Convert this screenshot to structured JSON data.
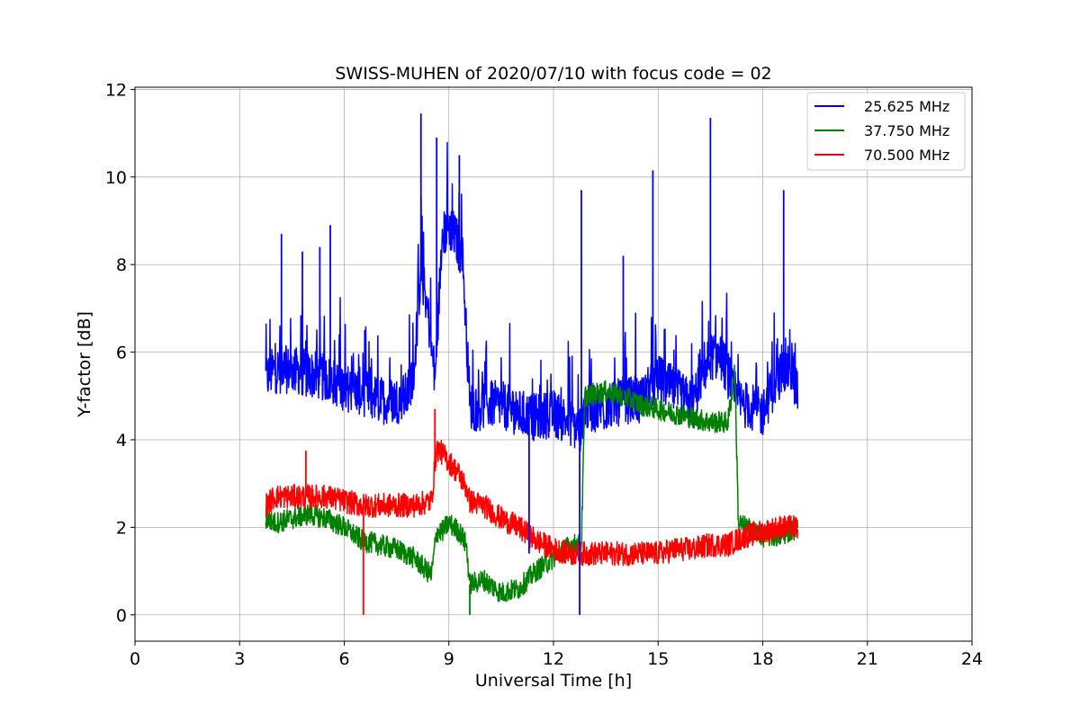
{
  "chart_data": {
    "type": "line",
    "title": "SWISS-MUHEN of 2020/07/10 with focus code = 02",
    "xlabel": "Universal Time [h]",
    "ylabel": "Y-factor [dB]",
    "xlim": [
      0,
      24
    ],
    "ylim": [
      -0.6,
      12.05
    ],
    "xticks": [
      0,
      3,
      6,
      9,
      12,
      15,
      18,
      21,
      24
    ],
    "yticks": [
      0,
      2,
      4,
      6,
      8,
      10,
      12
    ],
    "xtick_labels": [
      "0",
      "3",
      "6",
      "9",
      "12",
      "15",
      "18",
      "21",
      "24"
    ],
    "ytick_labels": [
      "0",
      "2",
      "4",
      "6",
      "8",
      "10",
      "12"
    ],
    "grid": true,
    "legend_position": "top-right",
    "series": [
      {
        "name": "25.625 MHz",
        "color": "#0000ff",
        "x": [
          3.75,
          4.0,
          4.5,
          5.0,
          5.5,
          6.0,
          6.5,
          7.0,
          7.5,
          7.8,
          8.0,
          8.2,
          8.4,
          8.6,
          8.8,
          9.0,
          9.2,
          9.4,
          9.6,
          9.8,
          10.0,
          10.5,
          11.0,
          11.5,
          12.0,
          12.5,
          12.75,
          12.9,
          13.0,
          13.5,
          14.0,
          14.5,
          15.0,
          15.5,
          16.0,
          16.5,
          16.8,
          17.0,
          17.2,
          17.5,
          17.8,
          18.0,
          18.3,
          18.6,
          18.8,
          19.0
        ],
        "y": [
          5.4,
          5.6,
          5.6,
          5.5,
          5.4,
          5.2,
          5.1,
          4.9,
          4.9,
          5.0,
          5.6,
          7.9,
          6.9,
          5.3,
          8.6,
          8.9,
          8.6,
          8.1,
          4.8,
          4.7,
          4.8,
          4.8,
          4.6,
          4.5,
          4.6,
          4.4,
          4.2,
          4.8,
          4.7,
          4.7,
          4.9,
          4.9,
          5.4,
          5.1,
          4.8,
          5.9,
          5.9,
          5.5,
          4.9,
          4.8,
          4.7,
          4.6,
          5.2,
          5.6,
          5.6,
          5.1
        ]
      },
      {
        "name": "37.750 MHz",
        "color": "#008000",
        "x": [
          3.75,
          4.0,
          4.5,
          5.0,
          5.5,
          6.0,
          6.5,
          7.0,
          7.5,
          8.0,
          8.5,
          8.65,
          8.8,
          9.0,
          9.3,
          9.5,
          9.6,
          10.0,
          10.5,
          11.0,
          11.5,
          12.0,
          12.5,
          12.8,
          12.9,
          13.5,
          14.0,
          14.5,
          15.0,
          15.5,
          16.0,
          16.5,
          17.0,
          17.2,
          17.3,
          17.5,
          17.8,
          18.0,
          18.5,
          19.0
        ],
        "y": [
          2.2,
          2.1,
          2.2,
          2.3,
          2.2,
          2.0,
          1.7,
          1.6,
          1.5,
          1.3,
          0.9,
          1.9,
          1.9,
          2.1,
          1.9,
          1.6,
          0.7,
          0.8,
          0.5,
          0.6,
          1.0,
          1.3,
          1.6,
          1.6,
          5.0,
          5.1,
          5.0,
          4.8,
          4.7,
          4.6,
          4.5,
          4.4,
          4.4,
          5.6,
          2.1,
          2.0,
          1.9,
          1.8,
          1.8,
          2.0
        ]
      },
      {
        "name": "70.500 MHz",
        "color": "#ff0000",
        "x": [
          3.75,
          4.0,
          4.5,
          5.0,
          5.5,
          6.0,
          6.5,
          7.0,
          7.5,
          8.0,
          8.5,
          8.65,
          8.8,
          9.0,
          9.3,
          9.5,
          9.6,
          10.0,
          10.5,
          11.0,
          11.5,
          12.0,
          12.5,
          13.0,
          13.5,
          14.0,
          14.5,
          15.0,
          15.5,
          16.0,
          16.5,
          17.0,
          17.5,
          18.0,
          18.5,
          19.0
        ],
        "y": [
          2.5,
          2.7,
          2.7,
          2.7,
          2.7,
          2.6,
          2.5,
          2.5,
          2.5,
          2.5,
          2.6,
          3.8,
          3.7,
          3.5,
          3.2,
          2.9,
          2.6,
          2.5,
          2.2,
          2.0,
          1.7,
          1.5,
          1.4,
          1.4,
          1.4,
          1.4,
          1.4,
          1.4,
          1.5,
          1.5,
          1.6,
          1.6,
          1.8,
          1.9,
          2.0,
          2.0
        ]
      }
    ],
    "spikes": [
      {
        "series": 0,
        "x": 4.2,
        "y": 8.7
      },
      {
        "series": 0,
        "x": 4.8,
        "y": 8.3
      },
      {
        "series": 0,
        "x": 5.3,
        "y": 8.4
      },
      {
        "series": 0,
        "x": 5.6,
        "y": 8.9
      },
      {
        "series": 0,
        "x": 8.2,
        "y": 11.45
      },
      {
        "series": 0,
        "x": 8.65,
        "y": 10.9
      },
      {
        "series": 0,
        "x": 9.3,
        "y": 10.5
      },
      {
        "series": 0,
        "x": 11.3,
        "y": 1.4
      },
      {
        "series": 0,
        "x": 12.75,
        "y": 0.0
      },
      {
        "series": 0,
        "x": 12.8,
        "y": 9.7
      },
      {
        "series": 0,
        "x": 14.0,
        "y": 8.2
      },
      {
        "series": 0,
        "x": 14.85,
        "y": 10.15
      },
      {
        "series": 0,
        "x": 16.5,
        "y": 11.35
      },
      {
        "series": 0,
        "x": 18.6,
        "y": 9.7
      },
      {
        "series": 1,
        "x": 9.6,
        "y": 0.0
      },
      {
        "series": 2,
        "x": 4.9,
        "y": 3.75
      },
      {
        "series": 2,
        "x": 6.55,
        "y": 0.0
      },
      {
        "series": 2,
        "x": 8.6,
        "y": 4.7
      }
    ]
  }
}
